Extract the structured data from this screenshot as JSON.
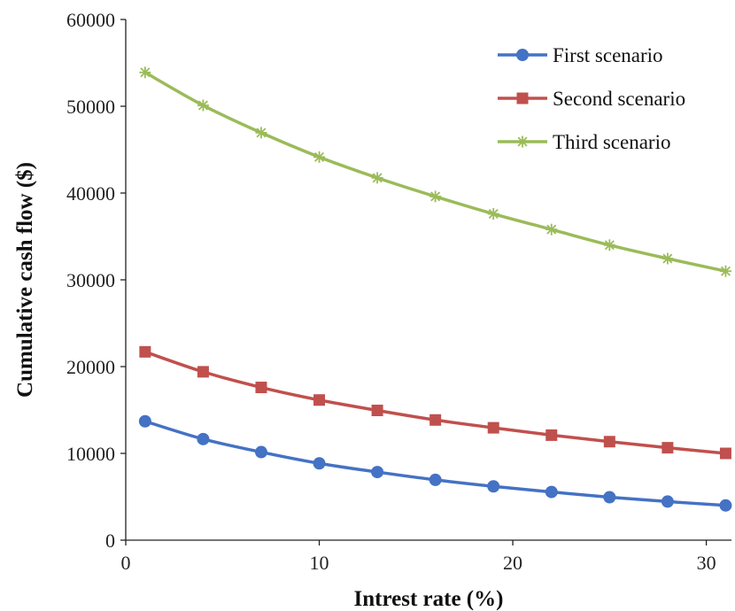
{
  "chart_data": {
    "type": "line",
    "xlabel": "Intrest rate (%)",
    "ylabel": "Cumulative cash flow ($)",
    "xlim": [
      0,
      31.3
    ],
    "ylim": [
      0,
      60000
    ],
    "xticks": [
      0,
      10,
      20,
      30
    ],
    "yticks": [
      0,
      10000,
      20000,
      30000,
      40000,
      50000,
      60000
    ],
    "grid": false,
    "legend_position": "top-right",
    "x": [
      1,
      4,
      7,
      10,
      13,
      16,
      19,
      22,
      25,
      28,
      31
    ],
    "series": [
      {
        "name": "First scenario",
        "color": "#4472C4",
        "marker": "circle",
        "values": [
          13700,
          11650,
          10150,
          8850,
          7850,
          6950,
          6200,
          5550,
          4950,
          4450,
          4000
        ]
      },
      {
        "name": "Second scenario",
        "color": "#C0504D",
        "marker": "square",
        "values": [
          21700,
          19400,
          17600,
          16150,
          14950,
          13850,
          12950,
          12100,
          11350,
          10650,
          10000
        ]
      },
      {
        "name": "Third scenario",
        "color": "#9BBB59",
        "marker": "asterisk",
        "values": [
          53900,
          50100,
          46950,
          44150,
          41750,
          39600,
          37600,
          35800,
          34000,
          32450,
          31000
        ]
      }
    ]
  }
}
